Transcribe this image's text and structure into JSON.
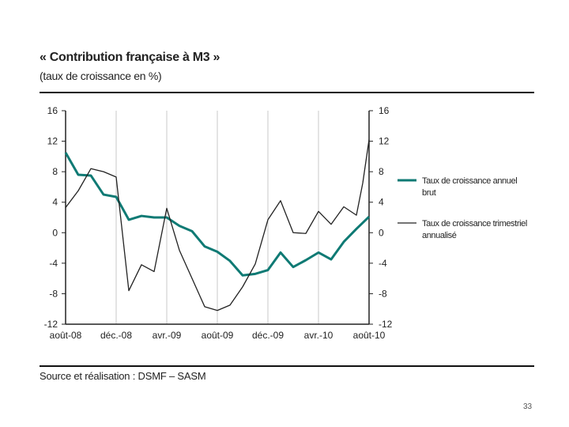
{
  "slide": {
    "title": "« Contribution française à M3 »",
    "subtitle": "(taux de croissance en %)",
    "source": "Source et réalisation : DSMF – SASM",
    "page_number": "33"
  },
  "chart_data": {
    "type": "line",
    "title": "« Contribution française à M3 »",
    "subtitle": "(taux de croissance en %)",
    "x_tick_labels": [
      "août-08",
      "déc.-08",
      "avr.-09",
      "août-09",
      "déc.-09",
      "avr.-10",
      "août-10"
    ],
    "y_ticks": [
      16,
      12,
      8,
      4,
      0,
      -4,
      -8,
      -12
    ],
    "ylim": [
      -12,
      16
    ],
    "xlim": [
      0,
      24
    ],
    "grid": "vertical at labelled months",
    "legend_position": "right",
    "series": [
      {
        "name": "Taux de croissance annuel brut",
        "color": "#0f7a74",
        "line_width": "thick",
        "x": [
          0,
          1,
          2,
          3,
          4,
          5,
          6,
          7,
          8,
          9,
          10,
          11,
          12,
          13,
          14,
          15,
          16,
          17,
          18,
          19,
          20,
          21,
          22,
          23,
          24
        ],
        "values": [
          10.5,
          7.6,
          7.5,
          5.0,
          4.7,
          1.7,
          2.2,
          2.0,
          2.0,
          0.9,
          0.2,
          -1.8,
          -2.5,
          -3.7,
          -5.6,
          -5.4,
          -4.9,
          -2.6,
          -4.5,
          -3.6,
          -2.6,
          -3.5,
          -1.2,
          0.5,
          2.1
        ]
      },
      {
        "name": "Taux de croissance trimestriel annualisé",
        "color": "#222222",
        "line_width": "thin",
        "x": [
          0,
          1,
          2,
          3,
          4,
          5,
          6,
          7,
          8,
          9,
          10,
          11,
          12,
          13,
          14,
          15,
          16,
          17,
          18,
          19,
          20,
          21,
          22,
          23,
          23.5,
          24
        ],
        "values": [
          3.3,
          5.5,
          8.4,
          8.0,
          7.3,
          -7.6,
          -4.2,
          -5.1,
          3.2,
          -2.3,
          -6.0,
          -9.7,
          -10.2,
          -9.5,
          -7.1,
          -4.1,
          1.7,
          4.2,
          0.0,
          -0.1,
          2.8,
          1.1,
          3.4,
          2.3,
          6.5,
          12.2
        ]
      }
    ]
  }
}
